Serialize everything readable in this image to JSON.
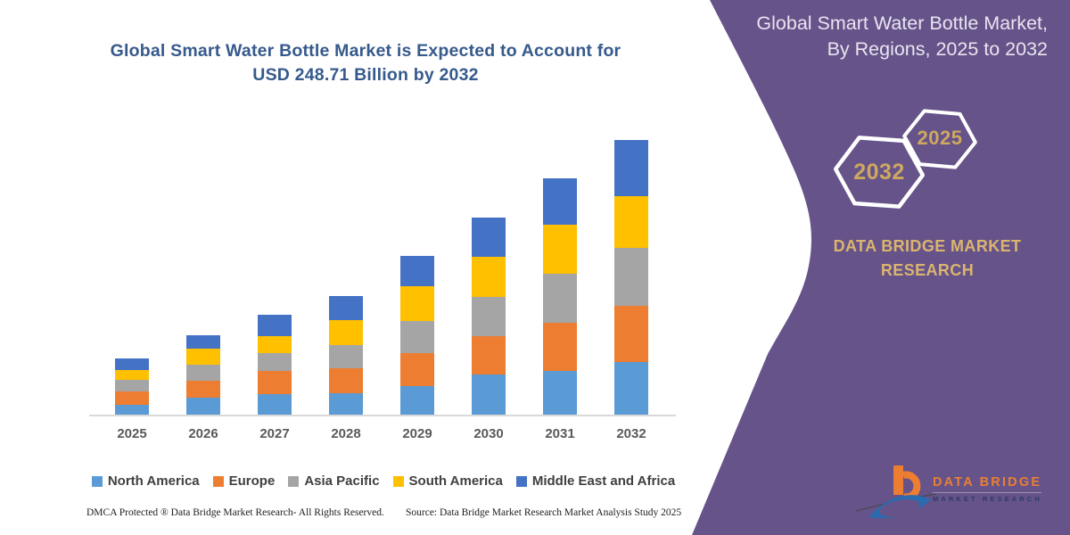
{
  "chart": {
    "title_line1": "Global Smart Water Bottle Market is Expected to Account for",
    "title_line2": "USD 248.71 Billion by 2032",
    "title_color": "#365A8C"
  },
  "chart_data": {
    "type": "bar",
    "stacked": true,
    "title": "Global Smart Water Bottle Market is Expected to Account for USD 248.71 Billion by 2032",
    "unit": "USD Billion",
    "categories": [
      "2025",
      "2026",
      "2027",
      "2028",
      "2029",
      "2030",
      "2031",
      "2032"
    ],
    "series": [
      {
        "name": "North America",
        "color": "#5B9BD5",
        "values": [
          8.9,
          15.0,
          18.3,
          19.3,
          26.0,
          36.2,
          39.7,
          47.5
        ]
      },
      {
        "name": "Europe",
        "color": "#ED7D31",
        "values": [
          12.1,
          15.3,
          20.9,
          22.8,
          29.5,
          34.4,
          43.5,
          51.0
        ]
      },
      {
        "name": "Asia Pacific",
        "color": "#A5A5A5",
        "values": [
          10.7,
          14.8,
          16.1,
          20.7,
          28.7,
          35.4,
          44.3,
          52.3
        ]
      },
      {
        "name": "South America",
        "color": "#FFC000",
        "values": [
          8.9,
          14.8,
          15.3,
          22.3,
          31.1,
          36.2,
          44.3,
          46.9
        ]
      },
      {
        "name": "Middle East and Africa",
        "color": "#4472C4",
        "values": [
          10.7,
          12.1,
          19.6,
          21.5,
          27.4,
          35.7,
          41.6,
          51.0
        ]
      }
    ],
    "totals_estimated": [
      51.3,
      72.0,
      90.2,
      106.6,
      142.7,
      178.0,
      213.4,
      248.71
    ],
    "xlabel": "",
    "ylabel": "",
    "y_axis_visible": false,
    "grid": false,
    "legend_position": "bottom"
  },
  "footer": {
    "dmca": "DMCA Protected ® Data Bridge Market Research-  All Rights Reserved.",
    "source": "Source: Data Bridge Market Research  Market Analysis Study 2025"
  },
  "panel": {
    "background": "#655389",
    "title_line1": "Global Smart Water Bottle Market,",
    "title_line2": "By Regions, 2025 to 2032",
    "hexagons": [
      {
        "label": "2032"
      },
      {
        "label": "2025"
      }
    ],
    "gold": "#CFA860",
    "brand_line1": "DATA BRIDGE MARKET",
    "brand_line2": "RESEARCH",
    "brand_color": "#DCB46E"
  },
  "logo": {
    "name": "DATA BRIDGE",
    "subtitle": "MARKET RESEARCH",
    "orange": "#ED7D31",
    "blue": "#2B6CB0"
  }
}
